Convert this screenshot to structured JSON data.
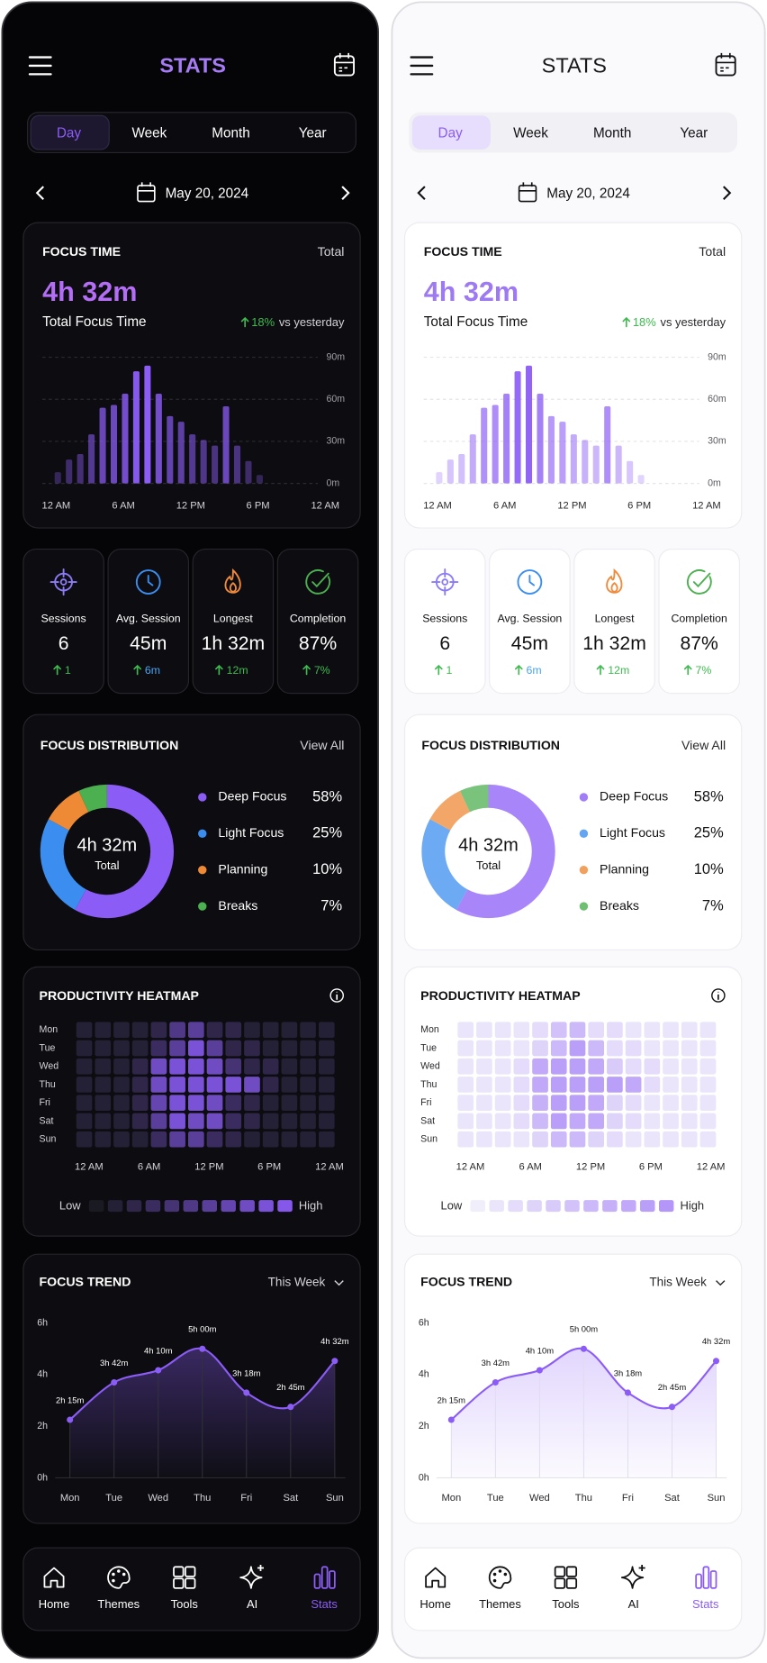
{
  "header": {
    "title": "STATS"
  },
  "tabs": {
    "items": [
      "Day",
      "Week",
      "Month",
      "Year"
    ],
    "active": 0
  },
  "date": "May 20, 2024",
  "focus_time": {
    "title": "FOCUS TIME",
    "filter": "Total",
    "value": "4h 32m",
    "label": "Total Focus Time",
    "change": "18%",
    "change_suffix": "vs yesterday",
    "chart": {
      "type": "bar",
      "color": "#8b5cf6",
      "values": [
        8,
        17,
        21,
        35,
        54,
        56,
        64,
        80,
        84,
        64,
        48,
        44,
        35,
        31,
        27,
        55,
        27,
        16,
        6,
        0,
        0,
        0,
        0,
        0
      ],
      "ylim": [
        0,
        90
      ],
      "yticks": [
        {
          "value": 0,
          "label": "0m"
        },
        {
          "value": 30,
          "label": "30m"
        },
        {
          "value": 60,
          "label": "60m"
        },
        {
          "value": 90,
          "label": "90m"
        }
      ],
      "xlim": [
        0,
        24
      ],
      "xticks": [
        {
          "value": 0,
          "label": "12 AM"
        },
        {
          "value": 6,
          "label": "6 AM"
        },
        {
          "value": 12,
          "label": "12 PM"
        },
        {
          "value": 18,
          "label": "6 PM"
        },
        {
          "value": 24,
          "label": "12 AM"
        }
      ],
      "grid": true
    }
  },
  "stats": [
    {
      "label": "Sessions",
      "value": "6",
      "change": "1",
      "color": "#8b7cf6"
    },
    {
      "label": "Avg. Session",
      "value": "45m",
      "change": "6m",
      "color": "#3b8ef0"
    },
    {
      "label": "Longest",
      "value": "1h 32m",
      "change": "12m",
      "color": "#f08a3c"
    },
    {
      "label": "Completion",
      "value": "87%",
      "change": "7%",
      "color": "#4caf50"
    }
  ],
  "distribution": {
    "title": "FOCUS DISTRIBUTION",
    "link": "View All",
    "center_value": "4h 32m",
    "center_label": "Total",
    "chart": {
      "type": "pie",
      "categories": [
        "Deep Focus",
        "Light Focus",
        "Planning",
        "Breaks"
      ],
      "values": [
        58,
        25,
        10,
        7
      ],
      "value_labels": [
        "58%",
        "25%",
        "10%",
        "7%"
      ],
      "colors": [
        "#8b5cf6",
        "#3b8ef0",
        "#ee8a35",
        "#4caf50"
      ]
    }
  },
  "heatmap": {
    "title": "PRODUCTIVITY HEATMAP",
    "chart": {
      "type": "heatmap",
      "color": "#8b5cf6",
      "rows": [
        "Mon",
        "Tue",
        "Wed",
        "Thu",
        "Fri",
        "Sat",
        "Sun"
      ],
      "values": [
        [
          1,
          1,
          1,
          1,
          2,
          5,
          6,
          2,
          2,
          1,
          1,
          1,
          1,
          1
        ],
        [
          1,
          1,
          1,
          1,
          3,
          6,
          9,
          6,
          2,
          2,
          1,
          1,
          1,
          1
        ],
        [
          1,
          1,
          1,
          2,
          8,
          9,
          9,
          8,
          4,
          2,
          2,
          1,
          1,
          1
        ],
        [
          1,
          1,
          1,
          2,
          8,
          9,
          9,
          9,
          9,
          8,
          2,
          1,
          1,
          1
        ],
        [
          1,
          1,
          1,
          2,
          7,
          9,
          9,
          8,
          3,
          2,
          1,
          1,
          1,
          1
        ],
        [
          1,
          1,
          1,
          2,
          6,
          9,
          8,
          8,
          3,
          2,
          1,
          1,
          1,
          1
        ],
        [
          1,
          1,
          1,
          1,
          3,
          6,
          6,
          3,
          2,
          1,
          1,
          1,
          1,
          1
        ]
      ],
      "xlim": [
        0,
        24
      ],
      "xticks": [
        {
          "value": 0,
          "label": "12 AM"
        },
        {
          "value": 6,
          "label": "6 AM"
        },
        {
          "value": 12,
          "label": "12 PM"
        },
        {
          "value": 18,
          "label": "6 PM"
        },
        {
          "value": 24,
          "label": "12 AM"
        }
      ],
      "scale": [
        0,
        1,
        2,
        3,
        4,
        5,
        6,
        7,
        8,
        9,
        10
      ],
      "low_label": "Low",
      "high_label": "High"
    }
  },
  "trend": {
    "title": "FOCUS TREND",
    "filter": "This Week",
    "chart": {
      "type": "line",
      "color": "#8b5cf6",
      "categories": [
        "Mon",
        "Tue",
        "Wed",
        "Thu",
        "Fri",
        "Sat",
        "Sun"
      ],
      "values": [
        2.25,
        3.7,
        4.17,
        5,
        3.3,
        2.75,
        4.53
      ],
      "value_labels": [
        "2h 15m",
        "3h 42m",
        "4h 10m",
        "5h 00m",
        "3h 18m",
        "2h 45m",
        "4h 32m"
      ],
      "ylim": [
        0,
        6
      ],
      "yticks": [
        {
          "value": 0,
          "label": "0h"
        },
        {
          "value": 2,
          "label": "2h"
        },
        {
          "value": 4,
          "label": "4h"
        },
        {
          "value": 6,
          "label": "6h"
        }
      ]
    }
  },
  "nav": {
    "items": [
      "Home",
      "Themes",
      "Tools",
      "AI",
      "Stats"
    ],
    "active": 4
  }
}
